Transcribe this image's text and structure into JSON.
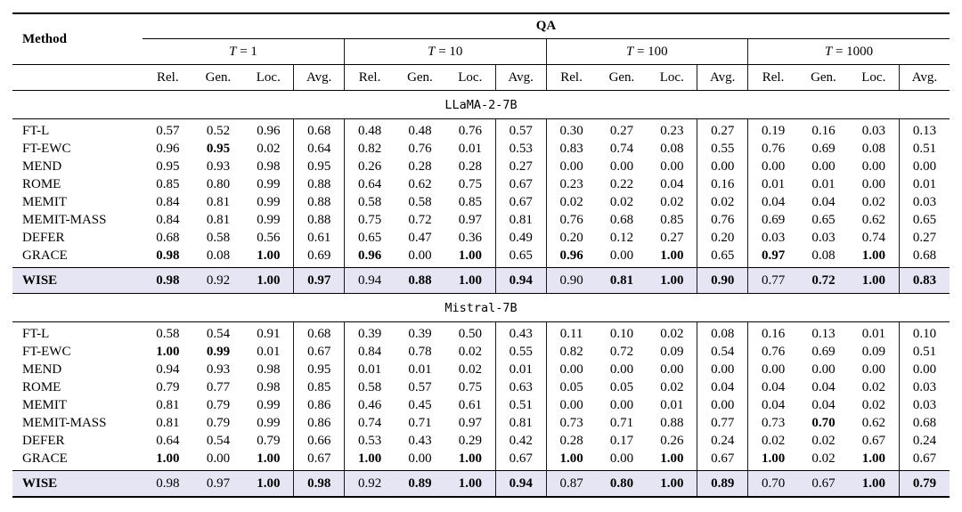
{
  "table": {
    "task_header": "QA",
    "method_header": "Method",
    "group_headers": [
      "T = 1",
      "T = 10",
      "T = 100",
      "T = 1000"
    ],
    "metric_headers": [
      "Rel.",
      "Gen.",
      "Loc.",
      "Avg."
    ],
    "colors": {
      "highlight_row_bg": "#e6e5f4",
      "rule_color": "#000000",
      "text_color": "#000000"
    },
    "sections": [
      {
        "model": "LLaMA-2-7B",
        "rows": [
          {
            "method": "FT-L",
            "highlight": false,
            "bold_indices": [],
            "values": [
              "0.57",
              "0.52",
              "0.96",
              "0.68",
              "0.48",
              "0.48",
              "0.76",
              "0.57",
              "0.30",
              "0.27",
              "0.23",
              "0.27",
              "0.19",
              "0.16",
              "0.03",
              "0.13"
            ]
          },
          {
            "method": "FT-EWC",
            "highlight": false,
            "bold_indices": [
              1
            ],
            "values": [
              "0.96",
              "0.95",
              "0.02",
              "0.64",
              "0.82",
              "0.76",
              "0.01",
              "0.53",
              "0.83",
              "0.74",
              "0.08",
              "0.55",
              "0.76",
              "0.69",
              "0.08",
              "0.51"
            ]
          },
          {
            "method": "MEND",
            "highlight": false,
            "bold_indices": [],
            "values": [
              "0.95",
              "0.93",
              "0.98",
              "0.95",
              "0.26",
              "0.28",
              "0.28",
              "0.27",
              "0.00",
              "0.00",
              "0.00",
              "0.00",
              "0.00",
              "0.00",
              "0.00",
              "0.00"
            ]
          },
          {
            "method": "ROME",
            "highlight": false,
            "bold_indices": [],
            "values": [
              "0.85",
              "0.80",
              "0.99",
              "0.88",
              "0.64",
              "0.62",
              "0.75",
              "0.67",
              "0.23",
              "0.22",
              "0.04",
              "0.16",
              "0.01",
              "0.01",
              "0.00",
              "0.01"
            ]
          },
          {
            "method": "MEMIT",
            "highlight": false,
            "bold_indices": [],
            "values": [
              "0.84",
              "0.81",
              "0.99",
              "0.88",
              "0.58",
              "0.58",
              "0.85",
              "0.67",
              "0.02",
              "0.02",
              "0.02",
              "0.02",
              "0.04",
              "0.04",
              "0.02",
              "0.03"
            ]
          },
          {
            "method": "MEMIT-MASS",
            "highlight": false,
            "bold_indices": [],
            "values": [
              "0.84",
              "0.81",
              "0.99",
              "0.88",
              "0.75",
              "0.72",
              "0.97",
              "0.81",
              "0.76",
              "0.68",
              "0.85",
              "0.76",
              "0.69",
              "0.65",
              "0.62",
              "0.65"
            ]
          },
          {
            "method": "DEFER",
            "highlight": false,
            "bold_indices": [],
            "values": [
              "0.68",
              "0.58",
              "0.56",
              "0.61",
              "0.65",
              "0.47",
              "0.36",
              "0.49",
              "0.20",
              "0.12",
              "0.27",
              "0.20",
              "0.03",
              "0.03",
              "0.74",
              "0.27"
            ]
          },
          {
            "method": "GRACE",
            "highlight": false,
            "bold_indices": [
              0,
              2,
              4,
              6,
              8,
              10,
              12,
              14
            ],
            "values": [
              "0.98",
              "0.08",
              "1.00",
              "0.69",
              "0.96",
              "0.00",
              "1.00",
              "0.65",
              "0.96",
              "0.00",
              "1.00",
              "0.65",
              "0.97",
              "0.08",
              "1.00",
              "0.68"
            ]
          },
          {
            "method": "WISE",
            "highlight": true,
            "bold_indices": [
              0,
              2,
              3,
              5,
              6,
              7,
              9,
              10,
              11,
              13,
              14,
              15
            ],
            "values": [
              "0.98",
              "0.92",
              "1.00",
              "0.97",
              "0.94",
              "0.88",
              "1.00",
              "0.94",
              "0.90",
              "0.81",
              "1.00",
              "0.90",
              "0.77",
              "0.72",
              "1.00",
              "0.83"
            ]
          }
        ]
      },
      {
        "model": "Mistral-7B",
        "rows": [
          {
            "method": "FT-L",
            "highlight": false,
            "bold_indices": [],
            "values": [
              "0.58",
              "0.54",
              "0.91",
              "0.68",
              "0.39",
              "0.39",
              "0.50",
              "0.43",
              "0.11",
              "0.10",
              "0.02",
              "0.08",
              "0.16",
              "0.13",
              "0.01",
              "0.10"
            ]
          },
          {
            "method": "FT-EWC",
            "highlight": false,
            "bold_indices": [
              0,
              1
            ],
            "values": [
              "1.00",
              "0.99",
              "0.01",
              "0.67",
              "0.84",
              "0.78",
              "0.02",
              "0.55",
              "0.82",
              "0.72",
              "0.09",
              "0.54",
              "0.76",
              "0.69",
              "0.09",
              "0.51"
            ]
          },
          {
            "method": "MEND",
            "highlight": false,
            "bold_indices": [],
            "values": [
              "0.94",
              "0.93",
              "0.98",
              "0.95",
              "0.01",
              "0.01",
              "0.02",
              "0.01",
              "0.00",
              "0.00",
              "0.00",
              "0.00",
              "0.00",
              "0.00",
              "0.00",
              "0.00"
            ]
          },
          {
            "method": "ROME",
            "highlight": false,
            "bold_indices": [],
            "values": [
              "0.79",
              "0.77",
              "0.98",
              "0.85",
              "0.58",
              "0.57",
              "0.75",
              "0.63",
              "0.05",
              "0.05",
              "0.02",
              "0.04",
              "0.04",
              "0.04",
              "0.02",
              "0.03"
            ]
          },
          {
            "method": "MEMIT",
            "highlight": false,
            "bold_indices": [],
            "values": [
              "0.81",
              "0.79",
              "0.99",
              "0.86",
              "0.46",
              "0.45",
              "0.61",
              "0.51",
              "0.00",
              "0.00",
              "0.01",
              "0.00",
              "0.04",
              "0.04",
              "0.02",
              "0.03"
            ]
          },
          {
            "method": "MEMIT-MASS",
            "highlight": false,
            "bold_indices": [
              13
            ],
            "values": [
              "0.81",
              "0.79",
              "0.99",
              "0.86",
              "0.74",
              "0.71",
              "0.97",
              "0.81",
              "0.73",
              "0.71",
              "0.88",
              "0.77",
              "0.73",
              "0.70",
              "0.62",
              "0.68"
            ]
          },
          {
            "method": "DEFER",
            "highlight": false,
            "bold_indices": [],
            "values": [
              "0.64",
              "0.54",
              "0.79",
              "0.66",
              "0.53",
              "0.43",
              "0.29",
              "0.42",
              "0.28",
              "0.17",
              "0.26",
              "0.24",
              "0.02",
              "0.02",
              "0.67",
              "0.24"
            ]
          },
          {
            "method": "GRACE",
            "highlight": false,
            "bold_indices": [
              0,
              2,
              4,
              6,
              8,
              10,
              12,
              14
            ],
            "values": [
              "1.00",
              "0.00",
              "1.00",
              "0.67",
              "1.00",
              "0.00",
              "1.00",
              "0.67",
              "1.00",
              "0.00",
              "1.00",
              "0.67",
              "1.00",
              "0.02",
              "1.00",
              "0.67"
            ]
          },
          {
            "method": "WISE",
            "highlight": true,
            "bold_indices": [
              2,
              3,
              5,
              6,
              7,
              9,
              10,
              11,
              14,
              15
            ],
            "values": [
              "0.98",
              "0.97",
              "1.00",
              "0.98",
              "0.92",
              "0.89",
              "1.00",
              "0.94",
              "0.87",
              "0.80",
              "1.00",
              "0.89",
              "0.70",
              "0.67",
              "1.00",
              "0.79"
            ]
          }
        ]
      }
    ]
  }
}
